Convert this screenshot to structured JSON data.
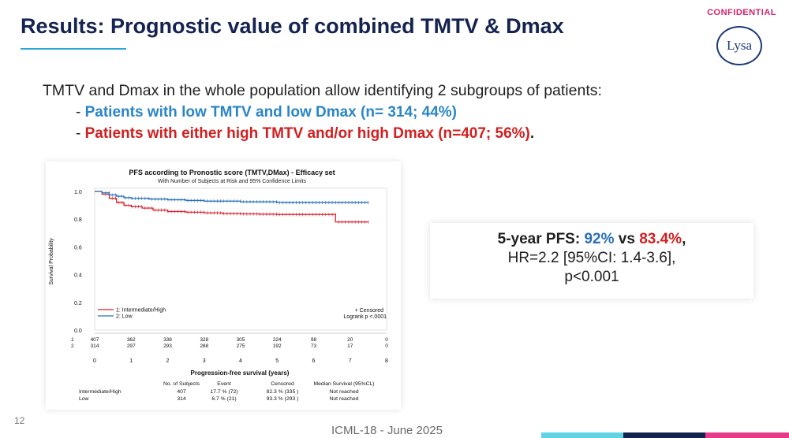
{
  "header": {
    "title": "Results: Prognostic value of combined TMTV & Dmax",
    "confidential": "CONFIDENTIAL",
    "logo_text": "Lysa"
  },
  "intro": {
    "text": "TMTV and Dmax in the whole population allow identifying 2 subgroups of patients:",
    "bullet1_dash": "- ",
    "bullet1": "Patients with low TMTV and low Dmax (n= 314; 44%)",
    "bullet2_dash": "- ",
    "bullet2": "Patients with either high TMTV and/or high Dmax (n=407; 56%)",
    "bullet2_end": "."
  },
  "chart_data": {
    "type": "line",
    "title": "PFS according to Pronostic score (TMTV,DMax) - Efficacy set",
    "subtitle": "With Number of Subjects at Risk and 95% Confidence Limits",
    "xlabel": "Progression-free survival (years)",
    "ylabel": "Survival Probability",
    "xlim": [
      0,
      8
    ],
    "ylim": [
      0,
      1.0
    ],
    "xticks": [
      "0",
      "1",
      "2",
      "3",
      "4",
      "5",
      "6",
      "7",
      "8"
    ],
    "yticks": [
      "0.0",
      "0.2",
      "0.4",
      "0.6",
      "0.8",
      "1.0"
    ],
    "series": [
      {
        "name": "1: Intermediate/High",
        "color": "#d9232e",
        "x": [
          0,
          0.2,
          0.4,
          0.6,
          0.8,
          1.0,
          1.3,
          1.6,
          2.0,
          2.5,
          3.0,
          3.5,
          4.0,
          4.5,
          5.0,
          5.5,
          6.0,
          6.5,
          6.6,
          7.0,
          7.5
        ],
        "y": [
          1.0,
          0.98,
          0.95,
          0.92,
          0.9,
          0.89,
          0.88,
          0.865,
          0.855,
          0.85,
          0.845,
          0.84,
          0.838,
          0.836,
          0.834,
          0.834,
          0.834,
          0.834,
          0.78,
          0.78,
          0.78
        ]
      },
      {
        "name": "2: Low",
        "color": "#2a72b8",
        "x": [
          0,
          0.2,
          0.4,
          0.6,
          0.8,
          1.0,
          1.5,
          2.0,
          2.5,
          3.0,
          4.0,
          5.0,
          6.0,
          7.0,
          7.5
        ],
        "y": [
          1.0,
          0.99,
          0.975,
          0.965,
          0.955,
          0.95,
          0.945,
          0.94,
          0.935,
          0.93,
          0.925,
          0.92,
          0.92,
          0.92,
          0.92
        ]
      }
    ],
    "censored_label": "+ Censored",
    "logrank": "Logrank p <.0001",
    "at_risk": {
      "labels": [
        "1",
        "2"
      ],
      "rows": [
        [
          "407",
          "362",
          "338",
          "328",
          "305",
          "224",
          "98",
          "20",
          "0"
        ],
        [
          "314",
          "297",
          "293",
          "288",
          "275",
          "192",
          "73",
          "17",
          "0"
        ]
      ]
    },
    "summary_table": {
      "headers": [
        "",
        "No. of Subjects",
        "Event",
        "Censored",
        "Median Survival (95%CL)"
      ],
      "rows": [
        [
          "Intermediate/High",
          "407",
          "17.7 % (72)",
          "82.3 % (335 )",
          "Not reached"
        ],
        [
          "Low",
          "314",
          "6.7 % (21)",
          "93.3 % (293 )",
          "Not reached"
        ]
      ]
    }
  },
  "pfs_box": {
    "label": "5-year PFS: ",
    "low_value": "92%",
    "vs": " vs ",
    "high_value": "83.4%",
    "comma": ",",
    "hr": "HR=2.2 [95%CI: 1.4-3.6],",
    "p": "p<0.001"
  },
  "footer": {
    "slide_number": "12",
    "text": "ICML-18 - June 2025"
  }
}
